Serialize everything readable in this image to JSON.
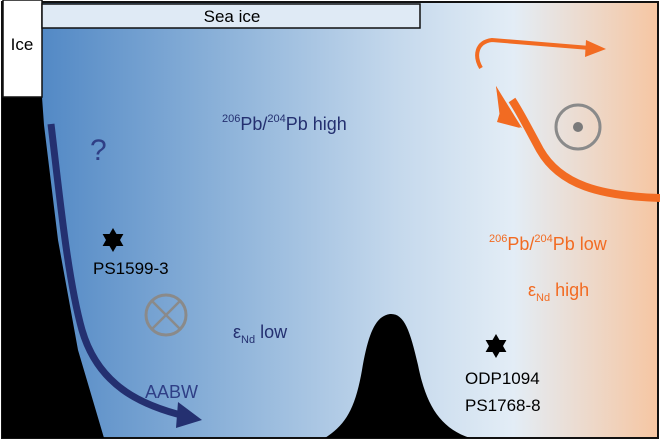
{
  "labels": {
    "ice": "Ice",
    "sea_ice": "Sea ice",
    "question": "?",
    "pb_high": {
      "sup1": "206",
      "pb1": "Pb/",
      "sup2": "204",
      "pb2": "Pb high"
    },
    "pb_low": {
      "sup1": "206",
      "pb1": "Pb/",
      "sup2": "204",
      "pb2": "Pb low"
    },
    "nd_low": {
      "eps": "ε",
      "sub": "Nd",
      "word": " low"
    },
    "nd_high": {
      "eps": "ε",
      "sub": "Nd",
      "word": " high"
    },
    "aabw": "AABW",
    "site_west": "PS1599-3",
    "site_east_1": "ODP1094",
    "site_east_2": "PS1768-8"
  },
  "colors": {
    "deep_blue": "#4a86c4",
    "pale_blue": "#e2ecf5",
    "peach": "#f5c8a6",
    "navy": "#243070",
    "orange": "#f26b22",
    "grey_symbol": "#888888"
  },
  "symbols": {
    "into_page": "circle-cross-icon",
    "out_of_page": "circle-dot-icon",
    "core_site": "star-icon"
  }
}
